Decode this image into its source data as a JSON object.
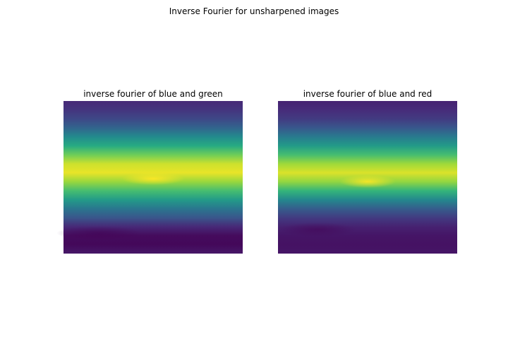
{
  "figure": {
    "suptitle": "Inverse Fourier for unsharpened images"
  },
  "chart_data": [
    {
      "type": "heatmap",
      "title": "inverse fourier of blue and green",
      "colormap": "viridis",
      "axes": "off",
      "grid": false,
      "profile_rows": [
        0.12,
        0.16,
        0.22,
        0.33,
        0.48,
        0.62,
        0.78,
        0.93,
        0.97,
        0.85,
        0.7,
        0.55,
        0.4,
        0.27,
        0.12,
        0.03,
        0.02,
        0.07
      ],
      "peak": {
        "col_fraction": 0.5,
        "row_fraction": 0.51
      }
    },
    {
      "type": "heatmap",
      "title": "inverse fourier of blue and red",
      "colormap": "viridis",
      "axes": "off",
      "grid": false,
      "profile_rows": [
        0.1,
        0.13,
        0.18,
        0.28,
        0.42,
        0.55,
        0.7,
        0.86,
        0.95,
        0.84,
        0.66,
        0.47,
        0.3,
        0.18,
        0.1,
        0.06,
        0.05,
        0.06
      ],
      "peak": {
        "col_fraction": 0.5,
        "row_fraction": 0.53
      }
    }
  ]
}
